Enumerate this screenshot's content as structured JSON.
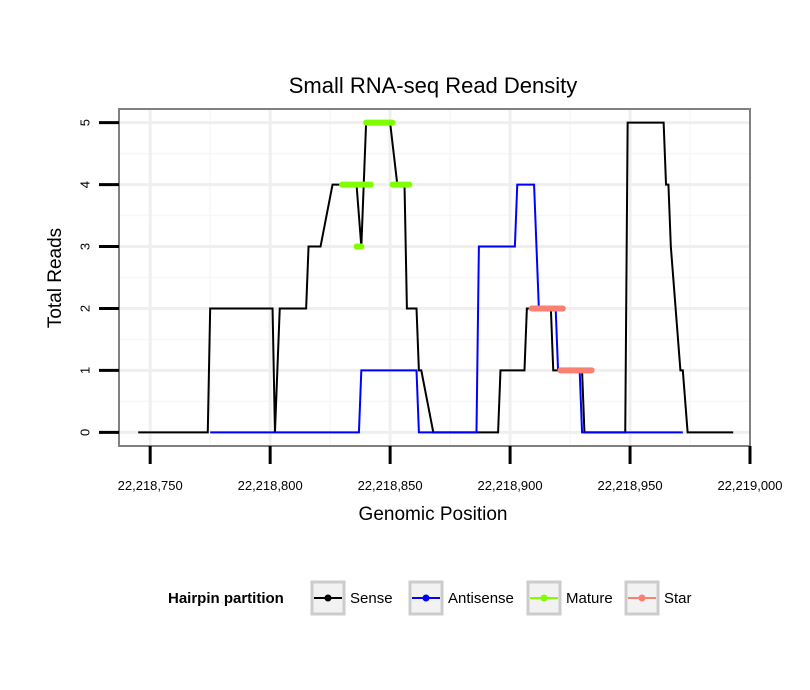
{
  "chart_data": {
    "type": "line",
    "title": "Small RNA-seq Read Density",
    "xlabel": "Genomic Position",
    "ylabel": "Total Reads",
    "xlim": [
      22218737,
      22219000
    ],
    "ylim": [
      -0.22,
      5.22
    ],
    "x_ticks": [
      22218750,
      22218800,
      22218850,
      22218900,
      22218950,
      22219000
    ],
    "x_tick_labels": [
      "22,218,750",
      "22,218,800",
      "22,218,850",
      "22,218,900",
      "22,218,950",
      "22,219,000"
    ],
    "y_ticks": [
      0,
      1,
      2,
      3,
      4,
      5
    ],
    "y_tick_labels": [
      "0",
      "1",
      "2",
      "3",
      "4",
      "5"
    ],
    "grid": true,
    "legend": {
      "title": "Hairpin partition",
      "position": "bottom",
      "entries": [
        {
          "label": "Sense",
          "color": "#000000"
        },
        {
          "label": "Antisense",
          "color": "#0000ff"
        },
        {
          "label": "Mature",
          "color": "#7fff00"
        },
        {
          "label": "Star",
          "color": "#fa8072"
        }
      ]
    },
    "series": [
      {
        "name": "Sense",
        "color": "#000000",
        "width": 2,
        "x": [
          22218745,
          22218774,
          22218775,
          22218801,
          22218802,
          22218804,
          22218815,
          22218816,
          22218818,
          22218821,
          22218826,
          22218836,
          22218838,
          22218840,
          22218850,
          22218853,
          22218856,
          22218857,
          22218861,
          22218862,
          22218863,
          22218868,
          22218895,
          22218896,
          22218906,
          22218907,
          22218917,
          22218918,
          22218919,
          22218920,
          22218930,
          22218931,
          22218948,
          22218949,
          22218964,
          22218965,
          22218966,
          22218967,
          22218971,
          22218972,
          22218974,
          22218993
        ],
        "y": [
          0,
          0,
          2,
          2,
          0,
          2,
          2,
          3,
          3,
          3,
          4,
          4,
          3,
          5,
          5,
          4,
          4,
          2,
          2,
          1,
          1,
          0,
          0,
          1,
          1,
          2,
          2,
          1,
          1,
          1,
          1,
          0,
          0,
          5,
          5,
          4,
          4,
          3,
          1,
          1,
          0,
          0
        ]
      },
      {
        "name": "Antisense",
        "color": "#0000ff",
        "width": 2,
        "x": [
          22218775,
          22218837,
          22218838,
          22218861,
          22218862,
          22218886,
          22218887,
          22218902,
          22218903,
          22218910,
          22218912,
          22218919,
          22218920,
          22218929,
          22218930,
          22218972
        ],
        "y": [
          0,
          0,
          1,
          1,
          0,
          0,
          3,
          3,
          4,
          4,
          2,
          2,
          1,
          1,
          0,
          0
        ]
      },
      {
        "name": "Mature",
        "color": "#7fff00",
        "width": 6,
        "segments": [
          {
            "x": [
              22218830,
              22218842
            ],
            "y": [
              4,
              4
            ]
          },
          {
            "x": [
              22218836,
              22218838
            ],
            "y": [
              3,
              3
            ]
          },
          {
            "x": [
              22218840,
              22218851
            ],
            "y": [
              5,
              5
            ]
          },
          {
            "x": [
              22218851,
              22218858
            ],
            "y": [
              4,
              4
            ]
          }
        ]
      },
      {
        "name": "Star",
        "color": "#fa8072",
        "width": 6,
        "segments": [
          {
            "x": [
              22218909,
              22218922
            ],
            "y": [
              2,
              2
            ]
          },
          {
            "x": [
              22218921,
              22218934
            ],
            "y": [
              1,
              1
            ]
          }
        ]
      }
    ]
  }
}
